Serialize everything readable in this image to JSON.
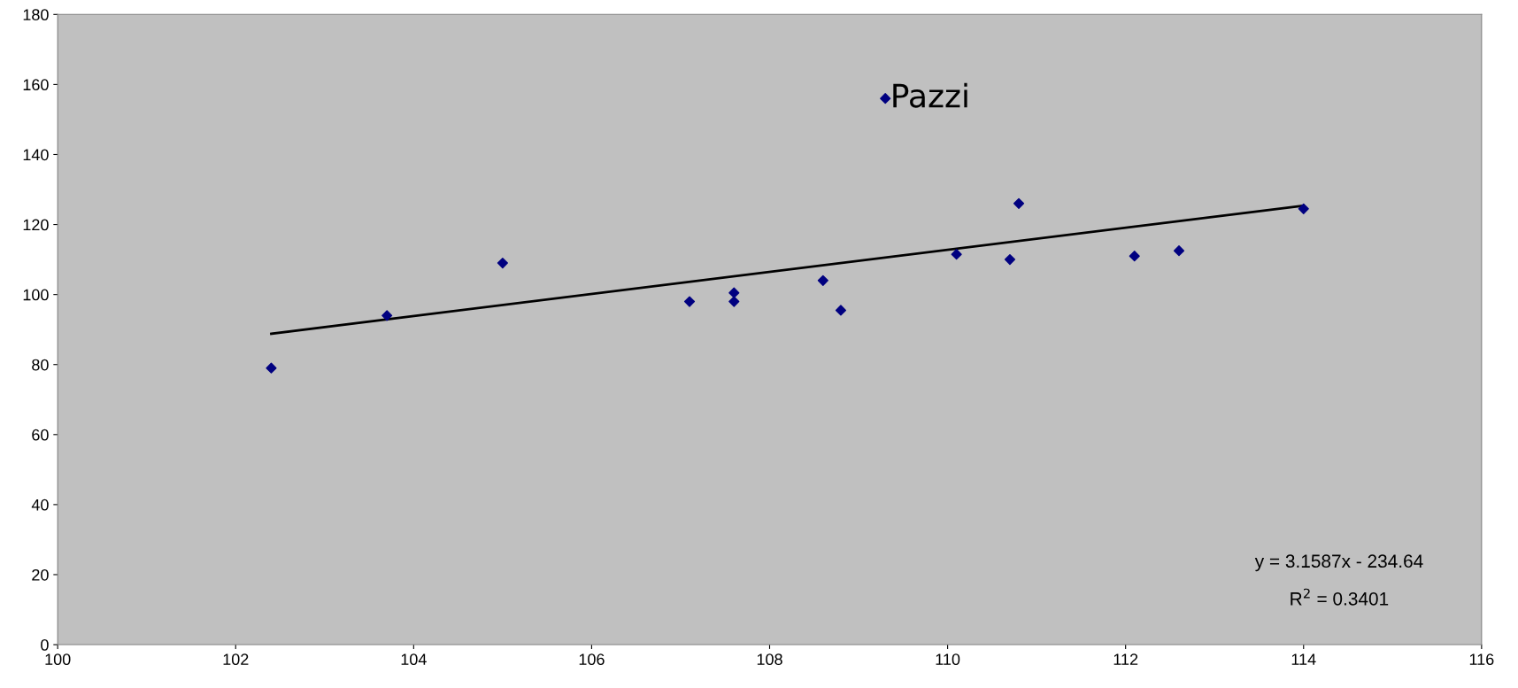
{
  "chart_data": {
    "type": "scatter",
    "x": [
      102.4,
      103.7,
      105.0,
      107.1,
      107.6,
      107.6,
      108.6,
      108.8,
      109.3,
      110.1,
      110.7,
      110.8,
      112.1,
      112.6,
      114.0
    ],
    "series": [
      {
        "color": "#000080",
        "marker": "diamond",
        "values": [
          79,
          94,
          109,
          98,
          100.5,
          98,
          104,
          95.5,
          156,
          111.5,
          110,
          126,
          111,
          112.5,
          124.5
        ]
      },
      {
        "type": "line",
        "color": "#000000",
        "marker": "none",
        "x": [
          102.4,
          114.0
        ],
        "values": [
          88.8,
          125.4
        ]
      }
    ],
    "xlim": [
      100,
      116
    ],
    "xticks": [
      100,
      102,
      104,
      106,
      108,
      110,
      112,
      114,
      116
    ],
    "ylim": [
      0,
      180
    ],
    "yticks": [
      0,
      20,
      40,
      60,
      80,
      100,
      120,
      140,
      160,
      180
    ],
    "grid": false,
    "legend": false,
    "annotations": [
      {
        "text": "Pazzi",
        "x": 109.3,
        "y": 156
      },
      "y = 3.1587x - 234.64",
      "R$^{2}$ = 0.3401"
    ]
  }
}
